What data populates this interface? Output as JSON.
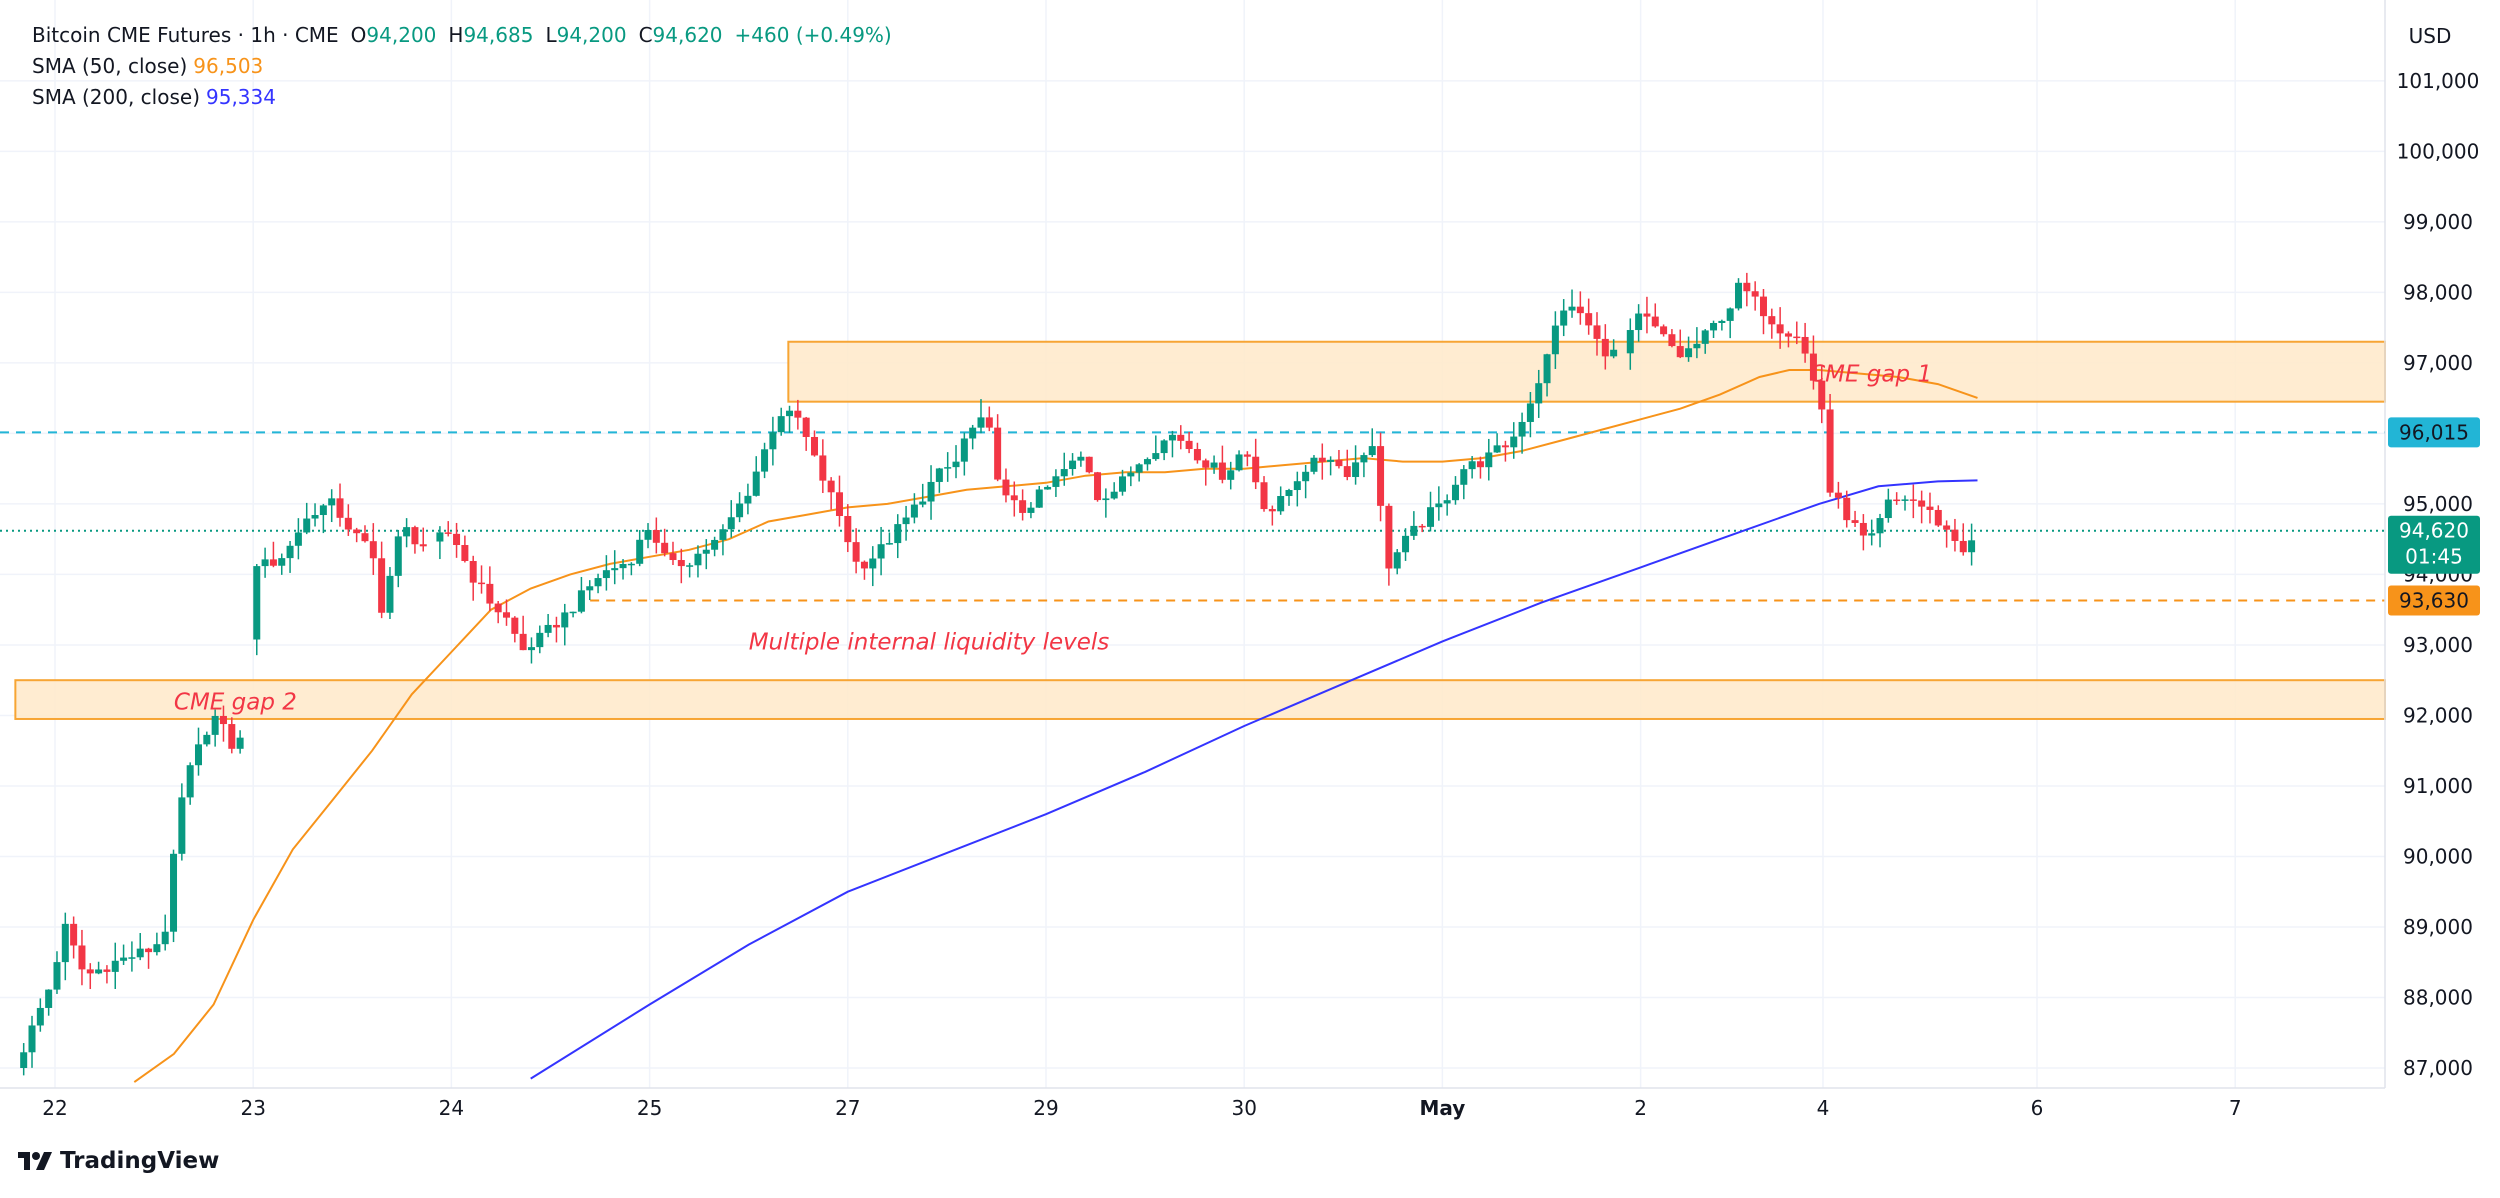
{
  "header": {
    "symbol": "Bitcoin CME Futures · 1h · CME",
    "open_label": "O",
    "open": "94,200",
    "high_label": "H",
    "high": "94,685",
    "low_label": "L",
    "low": "94,200",
    "close_label": "C",
    "close": "94,620",
    "change": "+460 (+0.49%)"
  },
  "indicators": [
    {
      "label": "SMA (50, close)",
      "value": "96,503",
      "color": "#f7931a"
    },
    {
      "label": "SMA (200, close)",
      "value": "95,334",
      "color": "#3434ff"
    }
  ],
  "currency": "USD",
  "branding": "TradingView",
  "colors": {
    "up": "#089981",
    "down": "#f23645",
    "zone_fill": "#ffe9c9",
    "zone_stroke": "#f7a534",
    "annotation": "#f23645",
    "cyan_level": "#22b5d6",
    "orange_level": "#f7931a",
    "sma50": "#f7931a",
    "sma200": "#3434ff"
  },
  "chart_data": {
    "type": "candlestick",
    "title": "Bitcoin CME Futures · 1h · CME",
    "ylim": [
      86900,
      101300
    ],
    "xlim_days": [
      -0.4,
      11.8
    ],
    "y_ticks": [
      87000,
      88000,
      89000,
      90000,
      91000,
      92000,
      93000,
      94000,
      95000,
      96000,
      97000,
      98000,
      99000,
      100000,
      101000
    ],
    "y_tick_labels": [
      "87,000",
      "88,000",
      "89,000",
      "90,000",
      "91,000",
      "92,000",
      "93,000",
      "94,000",
      "95,000",
      "96,000",
      "97,000",
      "98,000",
      "99,000",
      "100,000",
      "101,000"
    ],
    "x_ticks": [
      {
        "day": 0,
        "label": "22",
        "bold": false
      },
      {
        "day": 1,
        "label": "23",
        "bold": false
      },
      {
        "day": 2,
        "label": "24",
        "bold": false
      },
      {
        "day": 3,
        "label": "25",
        "bold": false
      },
      {
        "day": 4,
        "label": "27",
        "bold": false
      },
      {
        "day": 5,
        "label": "29",
        "bold": false
      },
      {
        "day": 6,
        "label": "30",
        "bold": false
      },
      {
        "day": 7,
        "label": "May",
        "bold": true
      },
      {
        "day": 8,
        "label": "2",
        "bold": false
      },
      {
        "day": 8.92,
        "label": "4",
        "bold": false
      },
      {
        "day": 10,
        "label": "6",
        "bold": false
      },
      {
        "day": 11,
        "label": "7",
        "bold": false
      }
    ],
    "price_path": [
      [
        -0.2,
        87000
      ],
      [
        -0.02,
        88200
      ],
      [
        0.05,
        89000
      ],
      [
        0.15,
        88300
      ],
      [
        0.3,
        88500
      ],
      [
        0.5,
        88700
      ],
      [
        0.56,
        89000
      ],
      [
        0.6,
        90000
      ],
      [
        0.65,
        91000
      ],
      [
        0.72,
        91500
      ],
      [
        0.78,
        91900
      ],
      [
        0.82,
        92000
      ],
      [
        0.88,
        91600
      ],
      [
        0.93,
        91500
      ],
      [
        1.0,
        93900
      ],
      [
        1.05,
        94300
      ],
      [
        1.12,
        94100
      ],
      [
        1.2,
        94500
      ],
      [
        1.3,
        94900
      ],
      [
        1.4,
        95000
      ],
      [
        1.5,
        94600
      ],
      [
        1.6,
        94300
      ],
      [
        1.65,
        93500
      ],
      [
        1.75,
        94700
      ],
      [
        1.85,
        94400
      ],
      [
        2.0,
        94600
      ],
      [
        2.1,
        94000
      ],
      [
        2.2,
        93600
      ],
      [
        2.3,
        93300
      ],
      [
        2.35,
        92900
      ],
      [
        2.45,
        93100
      ],
      [
        2.6,
        93500
      ],
      [
        2.75,
        94000
      ],
      [
        2.9,
        94200
      ],
      [
        3.0,
        94700
      ],
      [
        3.1,
        94100
      ],
      [
        3.2,
        94200
      ],
      [
        3.35,
        94500
      ],
      [
        3.5,
        95200
      ],
      [
        3.6,
        95900
      ],
      [
        3.65,
        96300
      ],
      [
        3.75,
        96200
      ],
      [
        3.85,
        95500
      ],
      [
        3.95,
        94900
      ],
      [
        4.05,
        94100
      ],
      [
        4.15,
        94300
      ],
      [
        4.3,
        94800
      ],
      [
        4.45,
        95400
      ],
      [
        4.55,
        95600
      ],
      [
        4.6,
        96000
      ],
      [
        4.7,
        96200
      ],
      [
        4.78,
        95100
      ],
      [
        4.88,
        94900
      ],
      [
        5.0,
        95200
      ],
      [
        5.1,
        95500
      ],
      [
        5.2,
        95700
      ],
      [
        5.25,
        95100
      ],
      [
        5.35,
        95200
      ],
      [
        5.5,
        95700
      ],
      [
        5.65,
        96000
      ],
      [
        5.8,
        95600
      ],
      [
        5.9,
        95400
      ],
      [
        6.0,
        95800
      ],
      [
        6.1,
        95000
      ],
      [
        6.15,
        94900
      ],
      [
        6.3,
        95500
      ],
      [
        6.45,
        95700
      ],
      [
        6.5,
        95400
      ],
      [
        6.6,
        95700
      ],
      [
        6.65,
        95900
      ],
      [
        6.72,
        94100
      ],
      [
        6.82,
        94500
      ],
      [
        6.95,
        94900
      ],
      [
        7.0,
        95000
      ],
      [
        7.1,
        95500
      ],
      [
        7.2,
        95600
      ],
      [
        7.35,
        95900
      ],
      [
        7.45,
        96500
      ],
      [
        7.52,
        97000
      ],
      [
        7.6,
        97800
      ],
      [
        7.7,
        97700
      ],
      [
        7.8,
        97200
      ],
      [
        7.9,
        97100
      ],
      [
        8.0,
        97700
      ],
      [
        8.1,
        97400
      ],
      [
        8.2,
        97100
      ],
      [
        8.3,
        97300
      ],
      [
        8.45,
        97800
      ],
      [
        8.5,
        98100
      ],
      [
        8.6,
        97800
      ],
      [
        8.7,
        97500
      ],
      [
        8.8,
        97400
      ],
      [
        8.92,
        96300
      ],
      [
        8.95,
        95200
      ],
      [
        9.05,
        94800
      ],
      [
        9.15,
        94400
      ],
      [
        9.25,
        95000
      ],
      [
        9.35,
        95100
      ],
      [
        9.45,
        94900
      ],
      [
        9.55,
        94600
      ],
      [
        9.65,
        94300
      ],
      [
        9.7,
        94620
      ]
    ],
    "sma50": {
      "name": "SMA (50, close)",
      "points": [
        [
          0.4,
          86800
        ],
        [
          0.6,
          87200
        ],
        [
          0.8,
          87900
        ],
        [
          1.0,
          89100
        ],
        [
          1.2,
          90100
        ],
        [
          1.4,
          90800
        ],
        [
          1.6,
          91500
        ],
        [
          1.8,
          92300
        ],
        [
          2.0,
          92900
        ],
        [
          2.2,
          93500
        ],
        [
          2.4,
          93800
        ],
        [
          2.6,
          94000
        ],
        [
          2.8,
          94150
        ],
        [
          3.0,
          94250
        ],
        [
          3.2,
          94350
        ],
        [
          3.4,
          94500
        ],
        [
          3.6,
          94750
        ],
        [
          3.8,
          94850
        ],
        [
          4.0,
          94950
        ],
        [
          4.2,
          95000
        ],
        [
          4.4,
          95100
        ],
        [
          4.6,
          95200
        ],
        [
          4.8,
          95250
        ],
        [
          5.0,
          95300
        ],
        [
          5.2,
          95400
        ],
        [
          5.4,
          95450
        ],
        [
          5.6,
          95450
        ],
        [
          5.8,
          95500
        ],
        [
          6.0,
          95500
        ],
        [
          6.2,
          95550
        ],
        [
          6.4,
          95600
        ],
        [
          6.6,
          95650
        ],
        [
          6.8,
          95600
        ],
        [
          7.0,
          95600
        ],
        [
          7.2,
          95650
        ],
        [
          7.4,
          95750
        ],
        [
          7.6,
          95900
        ],
        [
          7.8,
          96050
        ],
        [
          8.0,
          96200
        ],
        [
          8.2,
          96350
        ],
        [
          8.4,
          96550
        ],
        [
          8.6,
          96800
        ],
        [
          8.75,
          96900
        ],
        [
          8.9,
          96900
        ],
        [
          9.1,
          96850
        ],
        [
          9.3,
          96800
        ],
        [
          9.5,
          96700
        ],
        [
          9.7,
          96503
        ]
      ]
    },
    "sma200": {
      "name": "SMA (200, close)",
      "points": [
        [
          2.4,
          86850
        ],
        [
          3.0,
          87900
        ],
        [
          3.5,
          88750
        ],
        [
          4.0,
          89500
        ],
        [
          4.5,
          90050
        ],
        [
          5.0,
          90600
        ],
        [
          5.5,
          91200
        ],
        [
          6.0,
          91850
        ],
        [
          6.5,
          92450
        ],
        [
          7.0,
          93050
        ],
        [
          7.5,
          93600
        ],
        [
          8.0,
          94100
        ],
        [
          8.5,
          94600
        ],
        [
          8.9,
          95000
        ],
        [
          9.2,
          95250
        ],
        [
          9.5,
          95320
        ],
        [
          9.7,
          95334
        ]
      ]
    },
    "zones": [
      {
        "label": "CME gap 1",
        "x_start": 3.7,
        "x_end": 11.8,
        "y_low": 96450,
        "y_high": 97300
      },
      {
        "label": "CME gap 2",
        "x_start": -0.2,
        "x_end": 11.8,
        "y_low": 91950,
        "y_high": 92500
      }
    ],
    "levels": [
      {
        "value": 96015,
        "label": "96,015",
        "style": "dashed",
        "color": "#22b5d6",
        "x_start": -0.4
      },
      {
        "value": 93630,
        "label": "93,630",
        "style": "dashed",
        "color": "#f7931a",
        "x_start": 2.7
      },
      {
        "value": 94620,
        "label": "94,620",
        "sublabel": "01:45",
        "style": "dotted",
        "color": "#089981",
        "x_start": -0.4
      }
    ],
    "annotations": [
      {
        "text": "CME gap 1",
        "x": 8.85,
        "y": 96850
      },
      {
        "text": "CME gap 2",
        "x": 0.6,
        "y": 92200
      },
      {
        "text": "Multiple internal liquidity levels",
        "x": 3.5,
        "y": 93050
      }
    ]
  }
}
